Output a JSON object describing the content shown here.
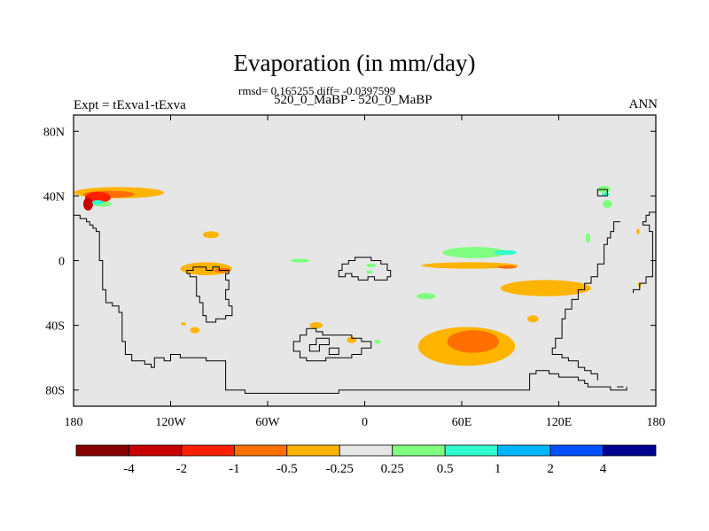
{
  "chart_data": {
    "type": "heatmap",
    "title": "Evaporation (in mm/day)",
    "stats_line": "rmsd= 0.165255 diff= -0.0397599",
    "subtitle": "520_0_MaBP - 520_0_MaBP",
    "experiment_label": "Expt = tExva1-tExva",
    "season_label": "ANN",
    "xlim": [
      -180,
      180
    ],
    "ylim": [
      -90,
      90
    ],
    "x_ticks": [
      {
        "value": -180,
        "label": "180"
      },
      {
        "value": -120,
        "label": "120W"
      },
      {
        "value": -60,
        "label": "60W"
      },
      {
        "value": 0,
        "label": "0"
      },
      {
        "value": 60,
        "label": "60E"
      },
      {
        "value": 120,
        "label": "120E"
      },
      {
        "value": 180,
        "label": "180"
      }
    ],
    "y_ticks": [
      {
        "value": 80,
        "label": "80N"
      },
      {
        "value": 40,
        "label": "40N"
      },
      {
        "value": 0,
        "label": "0"
      },
      {
        "value": -40,
        "label": "40S"
      },
      {
        "value": -80,
        "label": "80S"
      }
    ],
    "background_color": "#e6e6e6",
    "colorbar": {
      "colors": [
        "#870000",
        "#c80000",
        "#ff2000",
        "#ff7000",
        "#ffb400",
        "#e6e6e6",
        "#80ff80",
        "#30ffd0",
        "#00b4ff",
        "#0050ff",
        "#000090"
      ],
      "labels": [
        "-4",
        "-2",
        "-1",
        "-0.5",
        "-0.25",
        "0.25",
        "0.5",
        "1",
        "2",
        "4"
      ]
    },
    "anomalies": [
      {
        "lon": -152,
        "lat": 42,
        "rx": 28,
        "ry": 3.5,
        "color": "#ffb400"
      },
      {
        "lon": -158,
        "lat": 41,
        "rx": 16,
        "ry": 2.2,
        "color": "#ff7000"
      },
      {
        "lon": -165,
        "lat": 39,
        "rx": 8,
        "ry": 3.5,
        "color": "#ff2000"
      },
      {
        "lon": -171,
        "lat": 35,
        "rx": 3,
        "ry": 4,
        "color": "#c80000"
      },
      {
        "lon": -162,
        "lat": 35,
        "rx": 6,
        "ry": 1.6,
        "color": "#80ff80"
      },
      {
        "lon": -165,
        "lat": 36,
        "rx": 3.5,
        "ry": 1.4,
        "color": "#30ffd0"
      },
      {
        "lon": -95,
        "lat": 16,
        "rx": 5,
        "ry": 2.2,
        "color": "#ffb400"
      },
      {
        "lon": -98,
        "lat": -5,
        "rx": 16,
        "ry": 4,
        "color": "#ffb400"
      },
      {
        "lon": -88,
        "lat": -6,
        "rx": 5,
        "ry": 1.5,
        "color": "#ff7000"
      },
      {
        "lon": -112,
        "lat": -39,
        "rx": 1.5,
        "ry": 1,
        "color": "#ffb400"
      },
      {
        "lon": -105,
        "lat": -43,
        "rx": 3,
        "ry": 2,
        "color": "#ffb400"
      },
      {
        "lon": -40,
        "lat": 0,
        "rx": 6,
        "ry": 1.2,
        "color": "#80ff80"
      },
      {
        "lon": -30,
        "lat": -40,
        "rx": 4,
        "ry": 2,
        "color": "#ffb400"
      },
      {
        "lon": -8,
        "lat": -49,
        "rx": 3,
        "ry": 2,
        "color": "#ffb400"
      },
      {
        "lon": 8,
        "lat": -50,
        "rx": 2,
        "ry": 1.2,
        "color": "#80ff80"
      },
      {
        "lon": 4,
        "lat": -3,
        "rx": 3,
        "ry": 1.2,
        "color": "#80ff80"
      },
      {
        "lon": 3,
        "lat": -7,
        "rx": 2,
        "ry": 1,
        "color": "#80ff80"
      },
      {
        "lon": 38,
        "lat": -22,
        "rx": 6,
        "ry": 2,
        "color": "#80ff80"
      },
      {
        "lon": 68,
        "lat": 5,
        "rx": 20,
        "ry": 3.5,
        "color": "#80ff80"
      },
      {
        "lon": 87,
        "lat": 5,
        "rx": 7,
        "ry": 1.5,
        "color": "#30ffd0"
      },
      {
        "lon": 65,
        "lat": -3,
        "rx": 30,
        "ry": 2,
        "color": "#ffb400"
      },
      {
        "lon": 88,
        "lat": -4,
        "rx": 6,
        "ry": 1,
        "color": "#ff7000"
      },
      {
        "lon": 112,
        "lat": -17,
        "rx": 28,
        "ry": 5,
        "color": "#ffb400"
      },
      {
        "lon": 104,
        "lat": -36,
        "rx": 3.5,
        "ry": 2.2,
        "color": "#ffb400"
      },
      {
        "lon": 63,
        "lat": -53,
        "rx": 30,
        "ry": 12,
        "color": "#ffb400"
      },
      {
        "lon": 67,
        "lat": -50,
        "rx": 16,
        "ry": 7,
        "color": "#ff7000"
      },
      {
        "lon": 148,
        "lat": 44,
        "rx": 4,
        "ry": 2.2,
        "color": "#80ff80"
      },
      {
        "lon": 149,
        "lat": 41,
        "rx": 2.5,
        "ry": 1,
        "color": "#30ffd0"
      },
      {
        "lon": 150,
        "lat": 35,
        "rx": 3,
        "ry": 2.5,
        "color": "#80ff80"
      },
      {
        "lon": 138,
        "lat": 14,
        "rx": 1.5,
        "ry": 3,
        "color": "#80ff80"
      },
      {
        "lon": 169,
        "lat": 18,
        "rx": 1,
        "ry": 1.8,
        "color": "#ffb400"
      },
      {
        "lon": 170,
        "lat": -15,
        "rx": 1,
        "ry": 1.5,
        "color": "#ffb400"
      }
    ],
    "coastlines": [
      [
        [
          -180,
          28
        ],
        [
          -176,
          28
        ],
        [
          -176,
          26
        ],
        [
          -172,
          26
        ],
        [
          -172,
          24
        ],
        [
          -170,
          24
        ],
        [
          -170,
          22
        ],
        [
          -168,
          22
        ],
        [
          -168,
          20
        ],
        [
          -166,
          20
        ],
        [
          -166,
          18
        ],
        [
          -164,
          18
        ],
        [
          -164,
          0
        ],
        [
          -162,
          0
        ],
        [
          -162,
          -18
        ],
        [
          -160,
          -18
        ],
        [
          -160,
          -26
        ],
        [
          -156,
          -26
        ],
        [
          -156,
          -28
        ],
        [
          -152,
          -28
        ],
        [
          -152,
          -32
        ],
        [
          -150,
          -32
        ],
        [
          -150,
          -50
        ],
        [
          -148,
          -50
        ],
        [
          -148,
          -58
        ],
        [
          -144,
          -58
        ],
        [
          -144,
          -62
        ],
        [
          -136,
          -62
        ],
        [
          -136,
          -64
        ],
        [
          -132,
          -64
        ],
        [
          -132,
          -66
        ],
        [
          -130,
          -66
        ],
        [
          -130,
          -60
        ],
        [
          -124,
          -60
        ],
        [
          -124,
          -62
        ],
        [
          -120,
          -62
        ],
        [
          -120,
          -58
        ],
        [
          -114,
          -58
        ],
        [
          -114,
          -60
        ],
        [
          -98,
          -60
        ],
        [
          -98,
          -62
        ],
        [
          -86,
          -62
        ],
        [
          -86,
          -80
        ],
        [
          -74,
          -80
        ],
        [
          -74,
          -82
        ],
        [
          -16,
          -82
        ],
        [
          -16,
          -80
        ],
        [
          102,
          -80
        ],
        [
          102,
          -70
        ],
        [
          106,
          -70
        ],
        [
          106,
          -68
        ],
        [
          114,
          -68
        ],
        [
          114,
          -70
        ],
        [
          120,
          -70
        ],
        [
          120,
          -72
        ],
        [
          132,
          -72
        ],
        [
          132,
          -74
        ],
        [
          136,
          -74
        ],
        [
          136,
          -76
        ],
        [
          138,
          -76
        ],
        [
          138,
          -78
        ],
        [
          152,
          -78
        ],
        [
          152,
          -80
        ],
        [
          162,
          -80
        ],
        [
          162,
          -78
        ]
      ],
      [
        [
          -110,
          -8
        ],
        [
          -108,
          -8
        ],
        [
          -108,
          -10
        ],
        [
          -104,
          -10
        ],
        [
          -104,
          -22
        ],
        [
          -102,
          -22
        ],
        [
          -102,
          -26
        ],
        [
          -100,
          -26
        ],
        [
          -100,
          -34
        ],
        [
          -98,
          -34
        ],
        [
          -98,
          -38
        ],
        [
          -92,
          -38
        ],
        [
          -92,
          -36
        ],
        [
          -86,
          -36
        ],
        [
          -86,
          -34
        ],
        [
          -82,
          -34
        ],
        [
          -82,
          -28
        ],
        [
          -84,
          -28
        ],
        [
          -84,
          -24
        ],
        [
          -86,
          -24
        ],
        [
          -86,
          -18
        ],
        [
          -84,
          -18
        ],
        [
          -84,
          -12
        ],
        [
          -86,
          -12
        ],
        [
          -86,
          -8
        ],
        [
          -84,
          -8
        ],
        [
          -84,
          -6
        ],
        [
          -90,
          -6
        ],
        [
          -90,
          -4
        ],
        [
          -94,
          -4
        ],
        [
          -94,
          -6
        ],
        [
          -98,
          -6
        ],
        [
          -98,
          -4
        ],
        [
          -106,
          -4
        ],
        [
          -106,
          -6
        ],
        [
          -110,
          -6
        ],
        [
          -110,
          -8
        ]
      ],
      [
        [
          -16,
          -6
        ],
        [
          -14,
          -6
        ],
        [
          -14,
          -2
        ],
        [
          -10,
          -2
        ],
        [
          -10,
          0
        ],
        [
          -6,
          0
        ],
        [
          -6,
          2
        ],
        [
          4,
          2
        ],
        [
          4,
          0
        ],
        [
          10,
          0
        ],
        [
          10,
          -2
        ],
        [
          14,
          -2
        ],
        [
          14,
          -6
        ],
        [
          16,
          -6
        ],
        [
          16,
          -10
        ],
        [
          14,
          -10
        ],
        [
          14,
          -12
        ],
        [
          6,
          -12
        ],
        [
          6,
          -10
        ],
        [
          2,
          -10
        ],
        [
          2,
          -12
        ],
        [
          -4,
          -12
        ],
        [
          -4,
          -10
        ],
        [
          -8,
          -10
        ],
        [
          -8,
          -8
        ],
        [
          -12,
          -8
        ],
        [
          -12,
          -10
        ],
        [
          -16,
          -10
        ],
        [
          -16,
          -6
        ]
      ],
      [
        [
          -36,
          -42
        ],
        [
          -30,
          -42
        ],
        [
          -30,
          -44
        ],
        [
          -26,
          -44
        ],
        [
          -26,
          -46
        ],
        [
          -8,
          -46
        ],
        [
          -8,
          -48
        ],
        [
          -2,
          -48
        ],
        [
          -2,
          -50
        ],
        [
          4,
          -50
        ],
        [
          4,
          -54
        ],
        [
          -2,
          -54
        ],
        [
          -2,
          -58
        ],
        [
          -8,
          -58
        ],
        [
          -8,
          -60
        ],
        [
          -24,
          -60
        ],
        [
          -24,
          -62
        ],
        [
          -36,
          -62
        ],
        [
          -36,
          -60
        ],
        [
          -40,
          -60
        ],
        [
          -40,
          -56
        ],
        [
          -44,
          -56
        ],
        [
          -44,
          -50
        ],
        [
          -40,
          -50
        ],
        [
          -40,
          -46
        ],
        [
          -36,
          -46
        ],
        [
          -36,
          -42
        ]
      ],
      [
        [
          -30,
          -48
        ],
        [
          -22,
          -48
        ],
        [
          -22,
          -52
        ],
        [
          -28,
          -52
        ],
        [
          -28,
          -56
        ],
        [
          -34,
          -56
        ],
        [
          -34,
          -52
        ],
        [
          -30,
          -52
        ],
        [
          -30,
          -48
        ]
      ],
      [
        [
          -22,
          -54
        ],
        [
          -16,
          -54
        ],
        [
          -16,
          -58
        ],
        [
          -22,
          -58
        ],
        [
          -22,
          -54
        ]
      ],
      [
        [
          144,
          40
        ],
        [
          150,
          40
        ],
        [
          150,
          44
        ],
        [
          144,
          44
        ],
        [
          144,
          40
        ]
      ],
      [
        [
          158,
          24
        ],
        [
          154,
          24
        ],
        [
          154,
          18
        ],
        [
          152,
          18
        ],
        [
          152,
          14
        ],
        [
          150,
          14
        ],
        [
          150,
          10
        ],
        [
          148,
          10
        ],
        [
          148,
          -2
        ],
        [
          144,
          -2
        ],
        [
          144,
          -10
        ],
        [
          140,
          -10
        ],
        [
          140,
          -14
        ],
        [
          136,
          -14
        ],
        [
          136,
          -18
        ],
        [
          132,
          -18
        ],
        [
          132,
          -24
        ],
        [
          128,
          -24
        ],
        [
          128,
          -30
        ],
        [
          124,
          -30
        ],
        [
          124,
          -36
        ],
        [
          122,
          -36
        ],
        [
          122,
          -48
        ],
        [
          118,
          -48
        ],
        [
          118,
          -54
        ],
        [
          116,
          -54
        ],
        [
          116,
          -58
        ],
        [
          122,
          -58
        ],
        [
          122,
          -60
        ],
        [
          126,
          -60
        ],
        [
          126,
          -62
        ],
        [
          132,
          -62
        ],
        [
          132,
          -66
        ],
        [
          136,
          -66
        ],
        [
          136,
          -68
        ],
        [
          140,
          -68
        ],
        [
          140,
          -70
        ],
        [
          144,
          -70
        ],
        [
          144,
          -74
        ]
      ],
      [
        [
          156,
          -78
        ],
        [
          160,
          -78
        ]
      ],
      [
        [
          180,
          30
        ],
        [
          176,
          30
        ],
        [
          176,
          28
        ],
        [
          174,
          28
        ],
        [
          174,
          24
        ],
        [
          172,
          24
        ],
        [
          172,
          22
        ],
        [
          176,
          22
        ],
        [
          176,
          18
        ],
        [
          178,
          18
        ],
        [
          178,
          -10
        ],
        [
          174,
          -10
        ],
        [
          174,
          -14
        ],
        [
          170,
          -14
        ],
        [
          170,
          -18
        ],
        [
          166,
          -18
        ],
        [
          166,
          -20
        ]
      ]
    ]
  }
}
